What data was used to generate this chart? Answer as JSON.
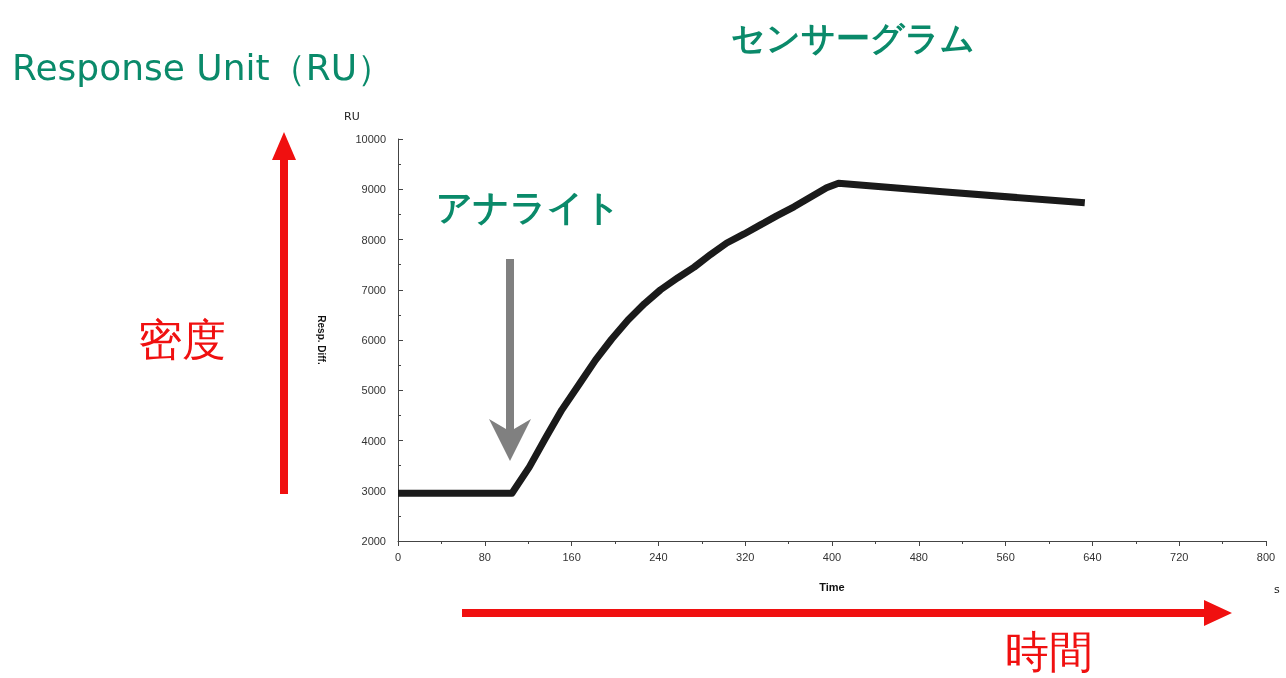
{
  "chart_data": {
    "type": "line",
    "title": "センサーグラム",
    "xlabel": "Time",
    "ylabel": "Resp. Diff.",
    "annotations": [
      "Response Unit（RU）",
      "密度",
      "時間",
      "アナライト",
      "RU",
      "s"
    ],
    "x": [
      0,
      60,
      105,
      121,
      136,
      151,
      167,
      182,
      197,
      212,
      227,
      242,
      258,
      273,
      288,
      303,
      319,
      334,
      349,
      365,
      380,
      395,
      406,
      502,
      633
    ],
    "values": [
      2950,
      2950,
      2950,
      3470,
      4050,
      4610,
      5120,
      5600,
      6020,
      6400,
      6720,
      7000,
      7240,
      7450,
      7700,
      7930,
      8110,
      8290,
      8470,
      8650,
      8840,
      9030,
      9120,
      8950,
      8730
    ],
    "color": "#1a1a1a",
    "xlim": [
      0,
      800
    ],
    "xticks": [
      0,
      80,
      160,
      240,
      320,
      400,
      480,
      560,
      640,
      720,
      800
    ],
    "ylim": [
      2000,
      10000
    ],
    "yticks": [
      2000,
      3000,
      4000,
      5000,
      6000,
      7000,
      8000,
      9000,
      10000
    ]
  }
}
